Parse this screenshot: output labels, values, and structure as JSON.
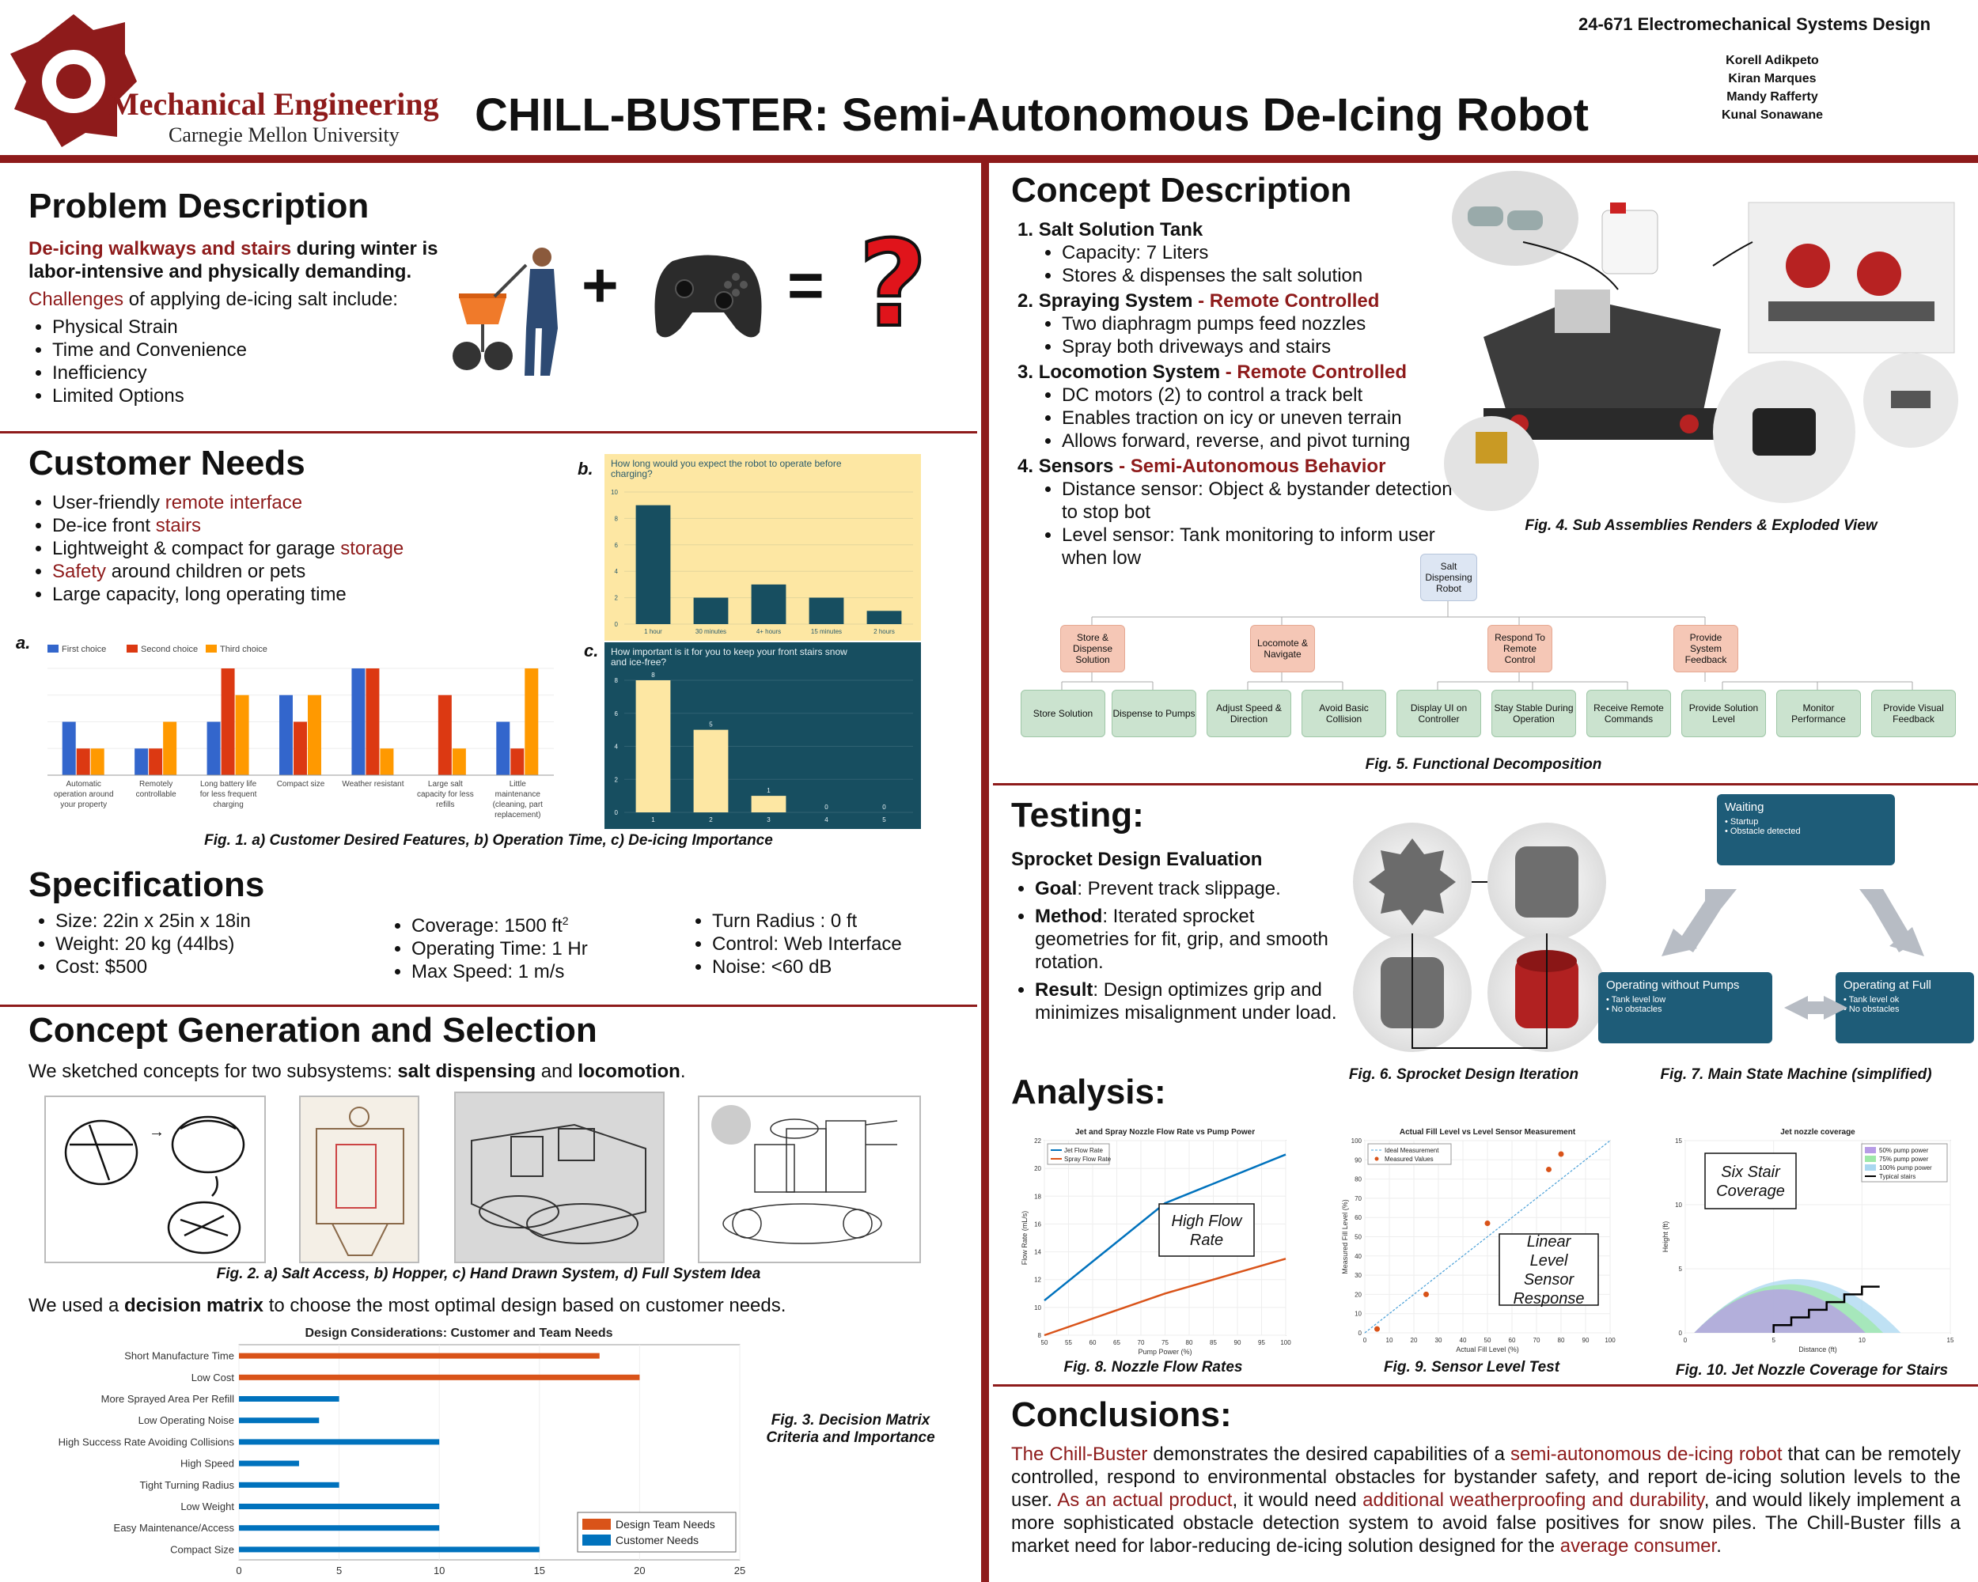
{
  "header": {
    "logo_line1": "Mechanical Engineering",
    "logo_line2": "Carnegie Mellon University",
    "title": "CHILL-BUSTER: Semi-Autonomous De-Icing Robot",
    "course": "24-671 Electromechanical Systems Design",
    "authors": [
      "Korell Adikpeto",
      "Kiran Marques",
      "Mandy Rafferty",
      "Kunal Sonawane"
    ]
  },
  "problem": {
    "heading": "Problem Description",
    "lead_red": "De-icing walkways and stairs",
    "lead_rest": " during winter is labor-intensive and physically demanding.",
    "challenges_red": "Challenges",
    "challenges_rest": " of applying de-icing salt include:",
    "items": [
      "Physical Strain",
      "Time and Convenience",
      "Inefficiency",
      "Limited Options"
    ],
    "plus": "+",
    "equals": "=",
    "question": "?"
  },
  "customer": {
    "heading": "Customer Needs",
    "items": [
      {
        "pre": "User-friendly ",
        "red": "remote interface",
        "post": ""
      },
      {
        "pre": "De-ice front ",
        "red": "stairs",
        "post": ""
      },
      {
        "pre": "Lightweight & compact for garage ",
        "red": "storage",
        "post": ""
      },
      {
        "pre": "",
        "red": "Safety",
        "post": " around children or pets"
      },
      {
        "pre": "Large capacity, long operating time",
        "red": "",
        "post": ""
      }
    ],
    "fig_caption": "Fig. 1.  a) Customer Desired Features, b) Operation Time, c) De-icing Importance",
    "label_a": "a.",
    "label_b": "b.",
    "label_c": "c."
  },
  "chart_a": {
    "type": "bar",
    "legend": [
      "First choice",
      "Second choice",
      "Third choice"
    ],
    "colors": [
      "#3366cc",
      "#dc3912",
      "#ff9900"
    ],
    "categories": [
      "Automatic operation around your property",
      "Remotely controllable",
      "Long battery life for less frequent charging",
      "Compact size",
      "Weather resistant",
      "Large salt capacity for less refills",
      "Little maintenance (cleaning, part replacement)"
    ],
    "series": [
      {
        "name": "First choice",
        "values": [
          2,
          1,
          2,
          3,
          4,
          0,
          2
        ]
      },
      {
        "name": "Second choice",
        "values": [
          1,
          1,
          4,
          2,
          4,
          3,
          1
        ]
      },
      {
        "name": "Third choice",
        "values": [
          1,
          2,
          3,
          3,
          1,
          1,
          4
        ]
      }
    ],
    "ylim": [
      0,
      4
    ]
  },
  "chart_b": {
    "type": "bar",
    "title": "How long would you expect the robot to operate before charging?",
    "categories": [
      "1 hour",
      "30 minutes",
      "4+ hours",
      "15 minutes",
      "2 hours"
    ],
    "values": [
      9,
      2,
      3,
      2,
      1
    ],
    "ylim": [
      0,
      10
    ],
    "yticks": [
      "0",
      "2",
      "4",
      "6",
      "8",
      "10"
    ]
  },
  "chart_c": {
    "type": "bar",
    "title": "How important is it for you to keep your front stairs snow and ice-free?",
    "categories": [
      "1",
      "2",
      "3",
      "4",
      "5"
    ],
    "values": [
      8,
      5,
      1,
      0,
      0
    ],
    "data_labels": [
      "8",
      "5",
      "1",
      "0",
      "0"
    ],
    "ylim": [
      0,
      8
    ],
    "yticks": [
      "0",
      "2",
      "4",
      "6",
      "8"
    ]
  },
  "specs": {
    "heading": "Specifications",
    "col1": [
      "Size: 22in x 25in x 18in",
      "Weight: 20 kg (44lbs)",
      "Cost: $500"
    ],
    "col2_coverage": "Coverage: 1500 ft",
    "col2_sup": "2",
    "col2": [
      "Operating Time: 1 Hr",
      "Max Speed: 1 m/s"
    ],
    "col3": [
      "Turn Radius : 0 ft",
      "Control: Web Interface",
      "Noise: <60 dB"
    ]
  },
  "concept_gen": {
    "heading": "Concept Generation and Selection",
    "intro_pre": "We sketched concepts for two subsystems: ",
    "intro_b1": "salt dispensing",
    "intro_mid": " and ",
    "intro_b2": "locomotion",
    "intro_post": ".",
    "fig2_caption": "Fig. 2.  a) Salt Access, b) Hopper, c) Hand Drawn System, d) Full System Idea",
    "dm_pre": "We used a ",
    "dm_b": "decision matrix",
    "dm_post": " to choose the most optimal design based on customer needs.",
    "fig3_caption": "Fig. 3.  Decision Matrix Criteria and Importance"
  },
  "chart_data": {
    "type": "bar",
    "orientation": "horizontal",
    "title": "Design Considerations: Customer and Team Needs",
    "categories": [
      "Short Manufacture Time",
      "Low Cost",
      "More Sprayed Area Per Refill",
      "Low Operating Noise",
      "High Success Rate Avoiding Collisions",
      "High Speed",
      "Tight Turning Radius",
      "Low Weight",
      "Easy Maintenance/Access",
      "Compact Size"
    ],
    "series": [
      {
        "name": "Design Team Needs",
        "color": "#d95319",
        "values": [
          18,
          20,
          0,
          0,
          0,
          0,
          0,
          0,
          0,
          0
        ]
      },
      {
        "name": "Customer Needs",
        "color": "#0072bd",
        "values": [
          0,
          0,
          5,
          4,
          10,
          3,
          5,
          10,
          10,
          15
        ]
      }
    ],
    "xlim": [
      0,
      25
    ],
    "xticks": [
      "0",
      "5",
      "10",
      "15",
      "20",
      "25"
    ],
    "legend_placement": "bottom-right"
  },
  "concept_desc": {
    "heading": "Concept Description",
    "items": [
      {
        "num": "1.",
        "title": "Salt Solution Tank",
        "red": "",
        "subs": [
          "Capacity: 7 Liters",
          "Stores & dispenses the salt solution"
        ]
      },
      {
        "num": "2.",
        "title": "Spraying System",
        "red": " - Remote Controlled",
        "subs": [
          "Two diaphragm pumps feed nozzles",
          "Spray both driveways and stairs"
        ]
      },
      {
        "num": "3.",
        "title": "Locomotion System",
        "red": " - Remote Controlled",
        "subs": [
          "DC motors (2) to control a track belt",
          "Enables traction on icy or uneven terrain",
          "Allows forward, reverse, and pivot turning"
        ]
      },
      {
        "num": "4.",
        "title": "Sensors",
        "red": " - Semi-Autonomous Behavior",
        "subs": [
          "Distance sensor: Object & bystander detection to stop bot",
          "Level sensor: Tank monitoring to inform user when low"
        ]
      }
    ],
    "fig4_caption": "Fig. 4.  Sub Assemblies Renders & Exploded View"
  },
  "func_decomp": {
    "top": "Salt Dispensing Robot",
    "level1": [
      "Store & Dispense Solution",
      "Locomote & Navigate",
      "Respond To Remote Control",
      "Provide System Feedback"
    ],
    "level2": [
      "Store Solution",
      "Dispense to Pumps",
      "Adjust Speed & Direction",
      "Avoid Basic Collision",
      "Display UI on Controller",
      "Stay Stable During Operation",
      "Receive Remote Commands",
      "Provide Solution Level",
      "Monitor Performance",
      "Provide Visual Feedback"
    ],
    "caption": "Fig. 5.  Functional Decomposition"
  },
  "testing": {
    "heading": "Testing:",
    "sub": "Sprocket Design Evaluation",
    "goal_b": "Goal",
    "goal": ": Prevent track slippage.",
    "method_b": "Method",
    "method": ": Iterated sprocket geometries for fit, grip, and smooth rotation.",
    "result_b": "Result",
    "result": ": Design optimizes grip and minimizes misalignment under load.",
    "fig6_caption": "Fig. 6.  Sprocket Design Iteration",
    "fig7_caption": "Fig. 7.  Main State Machine (simplified)",
    "states": [
      {
        "title": "Waiting",
        "items": [
          "Startup",
          "Obstacle detected"
        ]
      },
      {
        "title": "Operating without Pumps",
        "items": [
          "Tank level low",
          "No obstacles"
        ]
      },
      {
        "title": "Operating at Full",
        "items": [
          "Tank level ok",
          "No obstacles"
        ]
      }
    ]
  },
  "analysis": {
    "heading": "Analysis:",
    "fig8": {
      "title": "Jet and Spray Nozzle Flow Rate vs Pump Power",
      "xlabel": "Pump Power (%)",
      "ylabel": "Flow Rate (mL/s)",
      "legend": [
        "Jet Flow Rate",
        "Spray Flow Rate"
      ],
      "annotation": "High Flow Rate",
      "caption": "Fig. 8. Nozzle Flow Rates",
      "x": [
        50,
        75,
        100
      ],
      "jet": [
        10.5,
        17.5,
        21
      ],
      "spray": [
        8,
        11,
        13.5
      ],
      "xlim": [
        50,
        100
      ],
      "ylim": [
        8,
        22
      ],
      "xticks": [
        "50",
        "55",
        "60",
        "65",
        "70",
        "75",
        "80",
        "85",
        "90",
        "95",
        "100"
      ],
      "yticks": [
        "8",
        "10",
        "12",
        "14",
        "16",
        "18",
        "20",
        "22"
      ]
    },
    "fig9": {
      "title": "Actual Fill Level vs Level Sensor Measurement",
      "xlabel": "Actual Fill Level (%)",
      "ylabel": "Measured Fill Level (%)",
      "legend": [
        "Ideal Measurement",
        "Measured Values"
      ],
      "annotation": "Linear Level Sensor Response",
      "caption": "Fig. 9.  Sensor Level Test",
      "points": [
        [
          5,
          2
        ],
        [
          25,
          20
        ],
        [
          50,
          57
        ],
        [
          75,
          85
        ],
        [
          80,
          93
        ]
      ],
      "xlim": [
        0,
        100
      ],
      "ylim": [
        0,
        100
      ],
      "xticks": [
        "0",
        "10",
        "20",
        "30",
        "40",
        "50",
        "60",
        "70",
        "80",
        "90",
        "100"
      ],
      "yticks": [
        "0",
        "10",
        "20",
        "30",
        "40",
        "50",
        "60",
        "70",
        "80",
        "90",
        "100"
      ]
    },
    "fig10": {
      "title": "Jet nozzle coverage",
      "xlabel": "Distance (ft)",
      "ylabel": "Height (ft)",
      "legend": [
        "50% pump power",
        "75% pump power",
        "100% pump power",
        "Typical stairs"
      ],
      "legend_colors": [
        "#b79ce6",
        "#9ee8a8",
        "#a9d7f0",
        "#000000"
      ],
      "annotation": "Six Stair Coverage",
      "caption": "Fig. 10.  Jet Nozzle Coverage for Stairs",
      "xlim": [
        0,
        15
      ],
      "ylim": [
        0,
        15
      ],
      "xticks": [
        "0",
        "5",
        "10",
        "15"
      ],
      "yticks": [
        "0",
        "5",
        "10",
        "15"
      ]
    }
  },
  "conclusions": {
    "heading": "Conclusions:",
    "parts": [
      {
        "t": "The Chill-Buster",
        "red": true
      },
      {
        "t": " demonstrates the desired capabilities of a ",
        "red": false
      },
      {
        "t": "semi-autonomous de-icing robot",
        "red": true
      },
      {
        "t": " that can be remotely controlled, respond to environmental obstacles for bystander safety, and report de-icing solution levels to the user. ",
        "red": false
      },
      {
        "t": "As an actual product",
        "red": true
      },
      {
        "t": ", it would need ",
        "red": false
      },
      {
        "t": "additional weatherproofing and durability",
        "red": true
      },
      {
        "t": ", and would likely implement a more sophisticated obstacle detection system to avoid false positives for snow piles. The Chill-Buster fills a market need for labor-reducing de-icing solution designed for the ",
        "red": false
      },
      {
        "t": "average consumer",
        "red": true
      },
      {
        "t": ".",
        "red": false
      }
    ]
  }
}
